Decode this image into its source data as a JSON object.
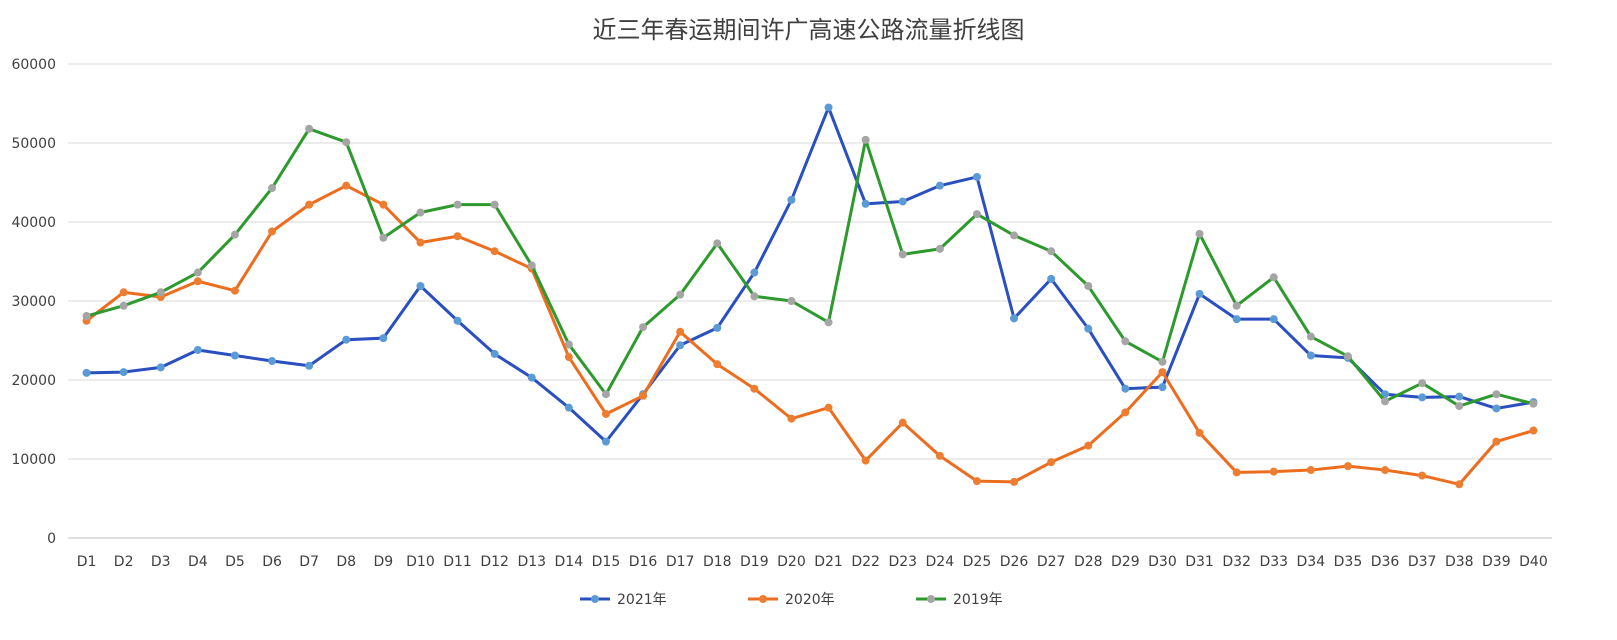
{
  "chart_data": {
    "type": "line",
    "title": "近三年春运期间许广高速公路流量折线图",
    "xlabel": "",
    "ylabel": "",
    "ylim": [
      0,
      60000
    ],
    "yticks": [
      0,
      10000,
      20000,
      30000,
      40000,
      50000,
      60000
    ],
    "grid": true,
    "legend_position": "bottom",
    "categories": [
      "D1",
      "D2",
      "D3",
      "D4",
      "D5",
      "D6",
      "D7",
      "D8",
      "D9",
      "D10",
      "D11",
      "D12",
      "D13",
      "D14",
      "D15",
      "D16",
      "D17",
      "D18",
      "D19",
      "D20",
      "D21",
      "D22",
      "D23",
      "D24",
      "D25",
      "D26",
      "D27",
      "D28",
      "D29",
      "D30",
      "D31",
      "D32",
      "D33",
      "D34",
      "D35",
      "D36",
      "D37",
      "D38",
      "D39",
      "D40"
    ],
    "series": [
      {
        "name": "2021年",
        "color": "#2a4fbf",
        "marker_color": "#5b9bd5",
        "values": [
          20900,
          21000,
          21600,
          23800,
          23100,
          22400,
          21800,
          25100,
          25300,
          31900,
          27500,
          23300,
          20300,
          16500,
          12200,
          18200,
          24400,
          26600,
          33600,
          42800,
          54500,
          42300,
          42600,
          44600,
          45700,
          27800,
          32800,
          26500,
          18900,
          19100,
          30900,
          27700,
          27700,
          23100,
          22800,
          18200,
          17800,
          17900,
          16400,
          17200
        ]
      },
      {
        "name": "2020年",
        "color": "#ed6d1f",
        "marker_color": "#ed7d31",
        "values": [
          27500,
          31100,
          30500,
          32500,
          31300,
          38800,
          42200,
          44600,
          42200,
          37400,
          38200,
          36300,
          34100,
          22900,
          15700,
          18000,
          26100,
          22000,
          18900,
          15100,
          16500,
          9800,
          14600,
          10400,
          7200,
          7100,
          9600,
          11700,
          15900,
          21000,
          13300,
          8300,
          8400,
          8600,
          9100,
          8600,
          7900,
          6800,
          12200,
          13600
        ]
      },
      {
        "name": "2019年",
        "color": "#2e9a2e",
        "marker_color": "#a5a5a5",
        "values": [
          28100,
          29400,
          31100,
          33600,
          38400,
          44300,
          51800,
          50100,
          38000,
          41200,
          42200,
          42200,
          34500,
          24500,
          18200,
          26700,
          30800,
          37300,
          30600,
          30000,
          27300,
          50400,
          35900,
          36600,
          41000,
          38300,
          36300,
          31900,
          24900,
          22300,
          38500,
          29400,
          33000,
          25500,
          23000,
          17300,
          19600,
          16700,
          18200,
          17000
        ]
      }
    ]
  }
}
